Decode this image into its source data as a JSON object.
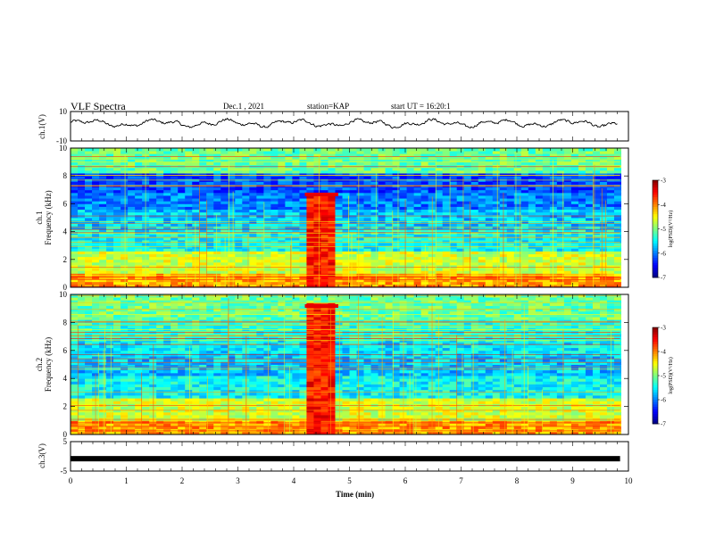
{
  "header": {
    "title": "VLF Spectra",
    "date": "Dec.1 , 2021",
    "station": "station=KAP",
    "start": "start UT = 16:20:1"
  },
  "chart_data": [
    {
      "type": "line",
      "panel": "ch1-waveform",
      "ylabel": "ch.1(V)",
      "ylim": [
        -10,
        10
      ],
      "yticks": [
        "10",
        "-10"
      ],
      "xlim": [
        0,
        10
      ],
      "series": [
        {
          "values_note": "",
          "approx_mean": 2,
          "approx_range": [
            -2,
            7
          ]
        }
      ]
    },
    {
      "type": "heatmap",
      "panel": "ch1-spectrogram",
      "ylabel": "ch.1 Frequency (kHz)",
      "ylim": [
        0,
        10
      ],
      "yticks": [
        "0",
        "2",
        "4",
        "6",
        "8",
        "10"
      ],
      "xlim": [
        0,
        10
      ],
      "colorbar": {
        "label": "log(PSD)(V²/Hz)",
        "range": [
          -7,
          -3
        ],
        "ticks": [
          "-3",
          "-4",
          "-5",
          "-6",
          "-7"
        ]
      },
      "bright_window_min": [
        4.2,
        4.8
      ],
      "bright_window_freq_khz": [
        0,
        6.8
      ]
    },
    {
      "type": "heatmap",
      "panel": "ch2-spectrogram",
      "ylabel": "ch.2 Frequency (kHz)",
      "ylim": [
        0,
        10
      ],
      "yticks": [
        "0",
        "2",
        "4",
        "6",
        "8",
        "10"
      ],
      "xlim": [
        0,
        10
      ],
      "colorbar": {
        "label": "log(PSD)(V²/Hz)",
        "range": [
          -7,
          -3
        ],
        "ticks": [
          "-3",
          "-4",
          "-5",
          "-6",
          "-7"
        ]
      },
      "bright_window_min": [
        4.2,
        4.8
      ],
      "bright_window_freq_khz": [
        0,
        9.3
      ]
    },
    {
      "type": "line",
      "panel": "ch3-voltage",
      "ylabel": "ch.3(V)",
      "ylim": [
        -5,
        5
      ],
      "yticks": [
        "5",
        "-5"
      ],
      "xlim": [
        0,
        10
      ],
      "series": [
        {
          "constant_value": -0.8
        }
      ]
    }
  ],
  "x_axis": {
    "label": "Time (min)",
    "ticks": [
      "0",
      "1",
      "2",
      "3",
      "4",
      "5",
      "6",
      "7",
      "8",
      "9",
      "10"
    ]
  },
  "colors": {
    "low": "#0000c8",
    "high": "#ff0000"
  }
}
